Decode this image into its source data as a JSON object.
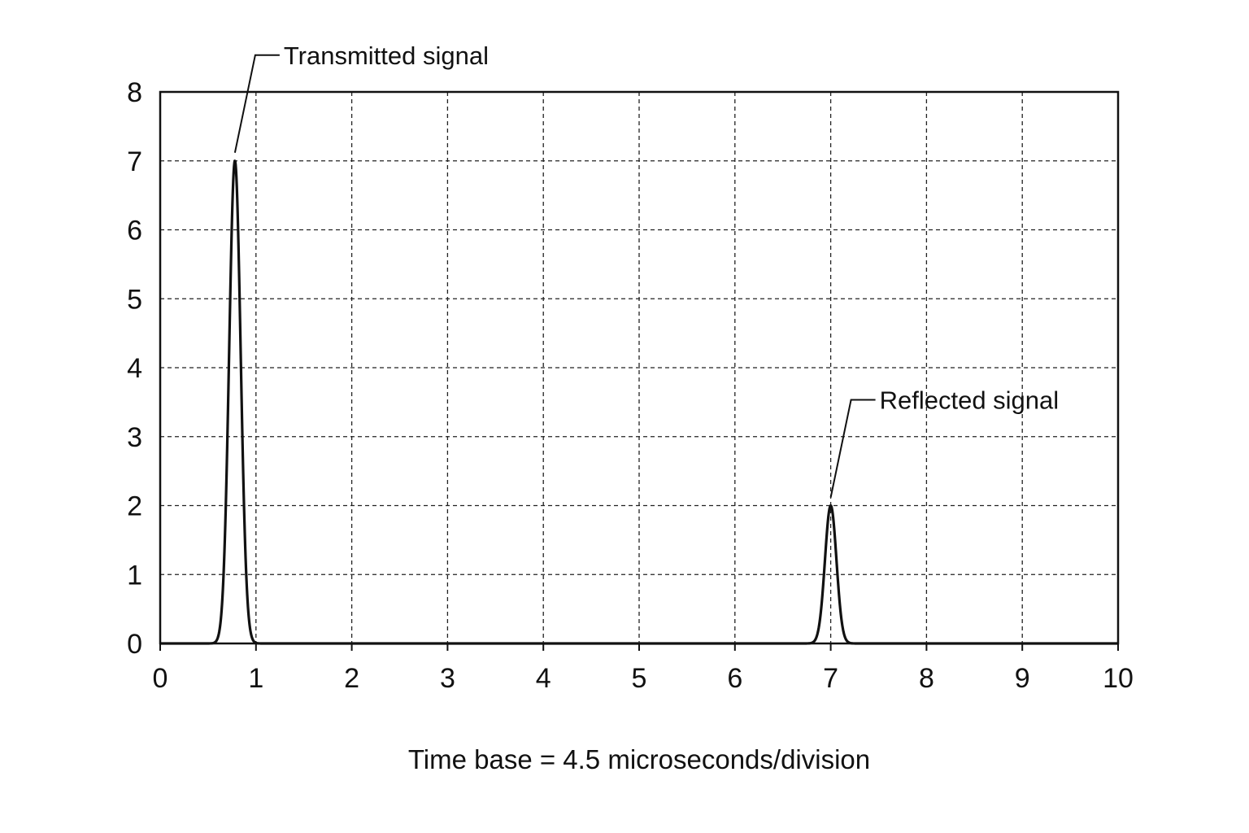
{
  "chart_data": {
    "type": "line",
    "title": "",
    "xlabel": "Time base = 4.5 microseconds/division",
    "ylabel": "",
    "xlim": [
      0,
      10
    ],
    "ylim": [
      0,
      8
    ],
    "xticks": [
      "0",
      "1",
      "2",
      "3",
      "4",
      "5",
      "6",
      "7",
      "8",
      "9",
      "10"
    ],
    "yticks": [
      "0",
      "1",
      "2",
      "3",
      "4",
      "5",
      "6",
      "7",
      "8"
    ],
    "grid": true,
    "legend": "none",
    "series": [
      {
        "baseline": 0,
        "pulses": [
          {
            "center": 0.78,
            "peak": 7.0,
            "width": 0.06
          },
          {
            "center": 7.0,
            "peak": 2.0,
            "width": 0.06
          }
        ]
      }
    ],
    "annotations": [
      {
        "text": "Transmitted signal",
        "x": 0.78,
        "y": 7.0
      },
      {
        "text": "Reflected signal",
        "x": 7.0,
        "y": 2.0
      }
    ],
    "line_color": "#111111",
    "grid_color": "#222222"
  }
}
